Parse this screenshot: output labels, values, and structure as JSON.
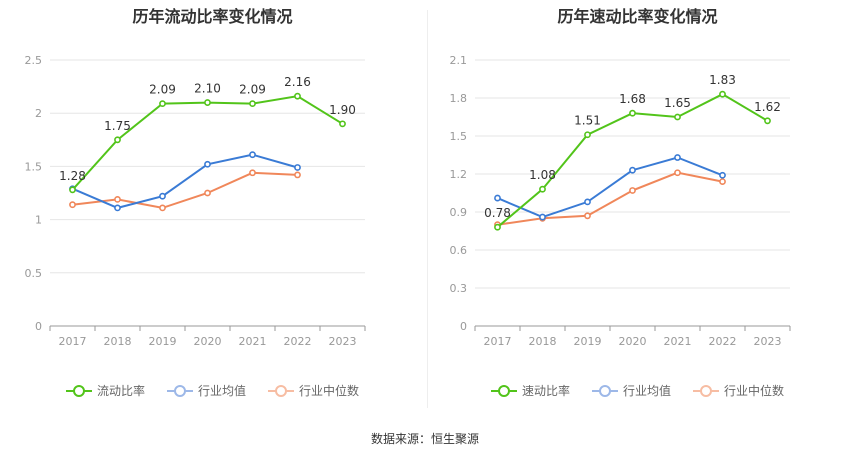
{
  "source_text": "数据来源：恒生聚源",
  "series_names": [
    "流动比率",
    "速动比率",
    "行业均值",
    "行业中位数"
  ],
  "series_colors": {
    "main": "#52c41a",
    "avg": "#3a7bd5",
    "median": "#f0875a"
  },
  "chart_data": [
    {
      "type": "line",
      "title": "历年流动比率变化情况",
      "categories": [
        "2017",
        "2018",
        "2019",
        "2020",
        "2021",
        "2022",
        "2023"
      ],
      "ylim": [
        0,
        2.5
      ],
      "yticks": [
        "0",
        "0.5",
        "1",
        "1.5",
        "2",
        "2.5"
      ],
      "grid": true,
      "legend_position": "bottom",
      "series": [
        {
          "name": "流动比率",
          "values": [
            1.28,
            1.75,
            2.09,
            2.1,
            2.09,
            2.16,
            1.9
          ],
          "labels": [
            "1.28",
            "1.75",
            "2.09",
            "2.10",
            "2.09",
            "2.16",
            "1.90"
          ]
        },
        {
          "name": "行业均值",
          "values": [
            1.29,
            1.11,
            1.22,
            1.52,
            1.61,
            1.49,
            null
          ]
        },
        {
          "name": "行业中位数",
          "values": [
            1.14,
            1.19,
            1.11,
            1.25,
            1.44,
            1.42,
            null
          ]
        }
      ]
    },
    {
      "type": "line",
      "title": "历年速动比率变化情况",
      "categories": [
        "2017",
        "2018",
        "2019",
        "2020",
        "2021",
        "2022",
        "2023"
      ],
      "ylim": [
        0,
        2.1
      ],
      "yticks": [
        "0",
        "0.3",
        "0.6",
        "0.9",
        "1.2",
        "1.5",
        "1.8",
        "2.1"
      ],
      "grid": true,
      "legend_position": "bottom",
      "series": [
        {
          "name": "速动比率",
          "values": [
            0.78,
            1.08,
            1.51,
            1.68,
            1.65,
            1.83,
            1.62
          ],
          "labels": [
            "0.78",
            "1.08",
            "1.51",
            "1.68",
            "1.65",
            "1.83",
            "1.62"
          ]
        },
        {
          "name": "行业均值",
          "values": [
            1.01,
            0.86,
            0.98,
            1.23,
            1.33,
            1.19,
            null
          ]
        },
        {
          "name": "行业中位数",
          "values": [
            0.8,
            0.85,
            0.87,
            1.07,
            1.21,
            1.14,
            null
          ]
        }
      ]
    }
  ]
}
